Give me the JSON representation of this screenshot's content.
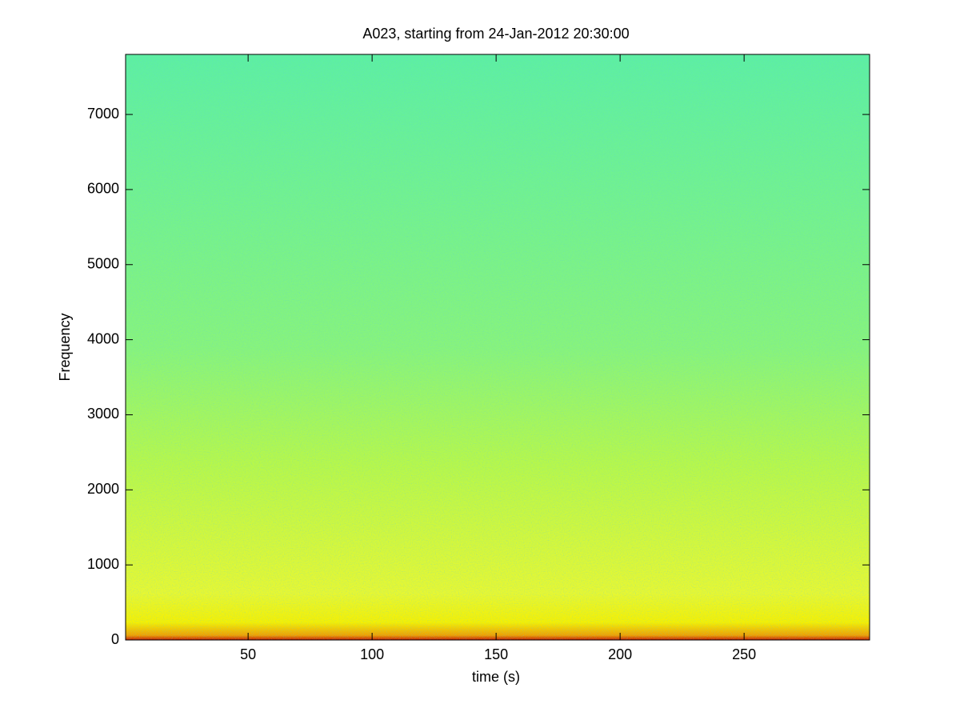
{
  "chart_data": {
    "type": "spectrogram",
    "title": "A023, starting from 24-Jan-2012 20:30:00",
    "x_label": "time (s)",
    "y_label": "Frequency",
    "xlim": [
      0.6,
      300.6
    ],
    "xticks": [
      50,
      100,
      150,
      200,
      250
    ],
    "ylim": [
      0,
      7800
    ],
    "yticks": [
      0,
      1000,
      2000,
      3000,
      4000,
      5000,
      6000,
      7000
    ]
  }
}
